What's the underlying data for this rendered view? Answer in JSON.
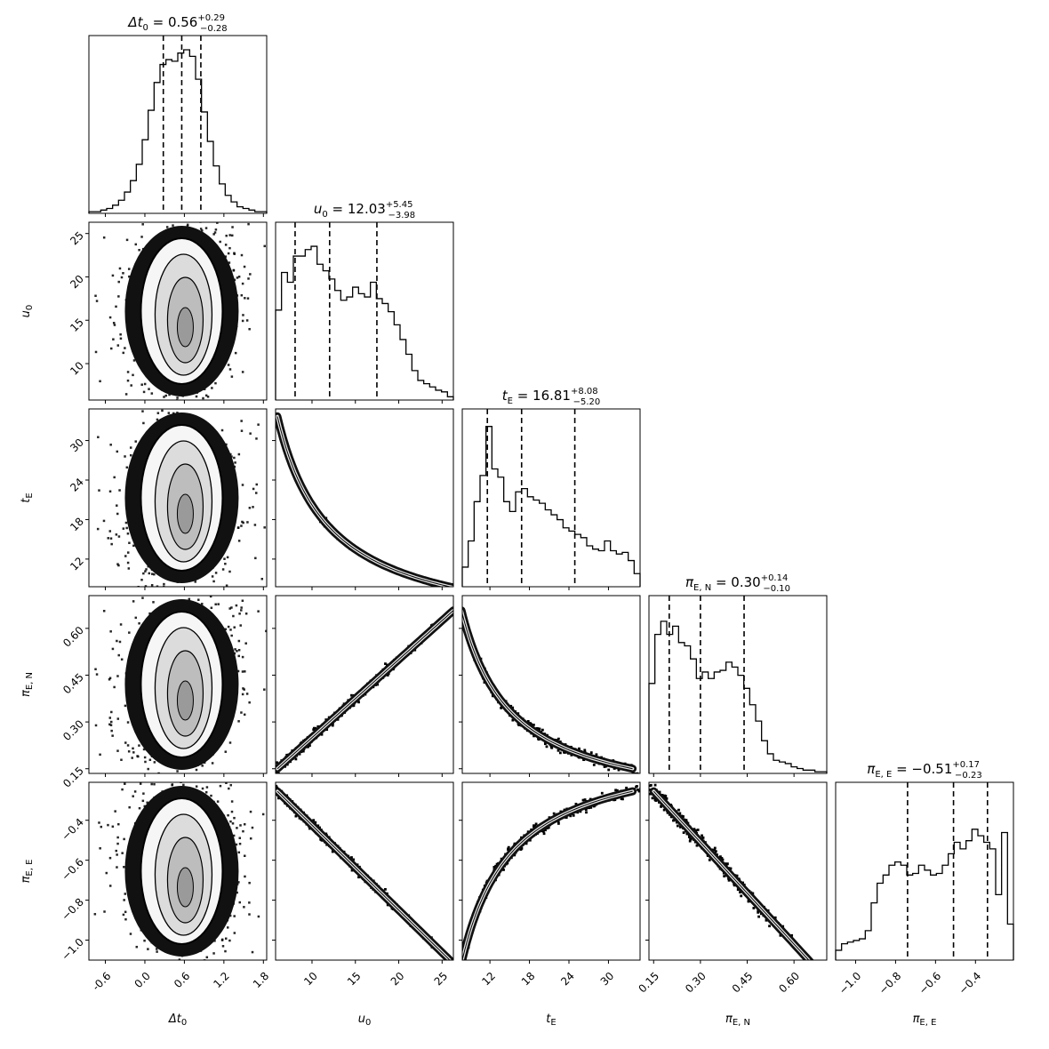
{
  "chart_data": {
    "type": "corner",
    "parameters": [
      {
        "label": "Δt0",
        "label_main": "Δt",
        "label_sub": "0",
        "title_value": "0.56",
        "err_plus": "+0.29",
        "err_minus": "−0.28",
        "median": 0.56,
        "q16": 0.28,
        "q84": 0.85,
        "range": [
          -0.85,
          1.85
        ],
        "ticks": [
          "-0.6",
          "0.0",
          "0.6",
          "1.2",
          "1.8"
        ],
        "tick_values": [
          -0.6,
          0.0,
          0.6,
          1.2,
          1.8
        ]
      },
      {
        "label": "u0",
        "label_main": "u",
        "label_sub": "0",
        "title_value": "12.03",
        "err_plus": "+5.45",
        "err_minus": "−3.98",
        "median": 12.03,
        "q16": 8.05,
        "q84": 17.48,
        "range": [
          5.8,
          26.3
        ],
        "ticks": [
          "10",
          "15",
          "20",
          "25"
        ],
        "tick_values": [
          10,
          15,
          20,
          25
        ]
      },
      {
        "label": "tE",
        "label_main": "t",
        "label_sub": "E",
        "title_value": "16.81",
        "err_plus": "+8.08",
        "err_minus": "−5.20",
        "median": 16.81,
        "q16": 11.61,
        "q84": 24.89,
        "range": [
          7.8,
          34.8
        ],
        "ticks": [
          "12",
          "18",
          "24",
          "30"
        ],
        "tick_values": [
          12,
          18,
          24,
          30
        ]
      },
      {
        "label": "πE,N",
        "label_main": "π",
        "label_sub": "E, N",
        "title_value": "0.30",
        "err_plus": "+0.14",
        "err_minus": "−0.10",
        "median": 0.3,
        "q16": 0.2,
        "q84": 0.44,
        "range": [
          0.135,
          0.705
        ],
        "ticks": [
          "0.15",
          "0.30",
          "0.45",
          "0.60"
        ],
        "tick_values": [
          0.15,
          0.3,
          0.45,
          0.6
        ]
      },
      {
        "label": "πE,E",
        "label_main": "π",
        "label_sub": "E, E",
        "title_value": "−0.51",
        "err_plus": "+0.17",
        "err_minus": "−0.23",
        "median": -0.51,
        "q16": -0.74,
        "q84": -0.34,
        "range": [
          -1.1,
          -0.21
        ],
        "ticks": [
          "−1.0",
          "−0.8",
          "−0.6",
          "−0.4"
        ],
        "tick_values": [
          -1.0,
          -0.8,
          -0.6,
          -0.4
        ]
      }
    ],
    "histograms": [
      [
        0.01,
        0.01,
        0.02,
        0.03,
        0.05,
        0.08,
        0.13,
        0.2,
        0.3,
        0.45,
        0.63,
        0.8,
        0.91,
        0.94,
        0.93,
        0.98,
        1.0,
        0.96,
        0.82,
        0.62,
        0.44,
        0.29,
        0.18,
        0.11,
        0.07,
        0.04,
        0.03,
        0.02,
        0.01,
        0.01
      ],
      [
        0.55,
        0.78,
        0.72,
        0.88,
        0.88,
        0.92,
        0.94,
        0.83,
        0.79,
        0.74,
        0.67,
        0.61,
        0.63,
        0.69,
        0.65,
        0.63,
        0.72,
        0.62,
        0.59,
        0.54,
        0.46,
        0.37,
        0.28,
        0.18,
        0.12,
        0.1,
        0.08,
        0.06,
        0.05,
        0.02
      ],
      [
        0.12,
        0.28,
        0.52,
        0.68,
        0.98,
        0.72,
        0.67,
        0.52,
        0.46,
        0.58,
        0.6,
        0.55,
        0.53,
        0.51,
        0.47,
        0.44,
        0.41,
        0.36,
        0.34,
        0.32,
        0.3,
        0.25,
        0.23,
        0.22,
        0.28,
        0.22,
        0.2,
        0.21,
        0.16,
        0.08
      ],
      [
        0.55,
        0.85,
        0.93,
        0.85,
        0.9,
        0.8,
        0.78,
        0.7,
        0.58,
        0.62,
        0.58,
        0.62,
        0.63,
        0.68,
        0.65,
        0.6,
        0.52,
        0.42,
        0.32,
        0.2,
        0.12,
        0.08,
        0.07,
        0.06,
        0.04,
        0.03,
        0.02,
        0.02,
        0.01,
        0.01
      ],
      [
        0.06,
        0.1,
        0.11,
        0.12,
        0.13,
        0.18,
        0.35,
        0.47,
        0.52,
        0.58,
        0.6,
        0.58,
        0.52,
        0.53,
        0.58,
        0.55,
        0.52,
        0.53,
        0.58,
        0.65,
        0.72,
        0.68,
        0.73,
        0.8,
        0.76,
        0.72,
        0.68,
        0.4,
        0.78,
        0.22
      ]
    ],
    "relations": {
      "u0_vs_tE": "tE ≈ 202 / u0",
      "u0_vs_piEN": "πE,N ≈ 0.025 · u0",
      "u0_vs_piEE": "πE,E ≈ −0.0425 · u0"
    }
  }
}
